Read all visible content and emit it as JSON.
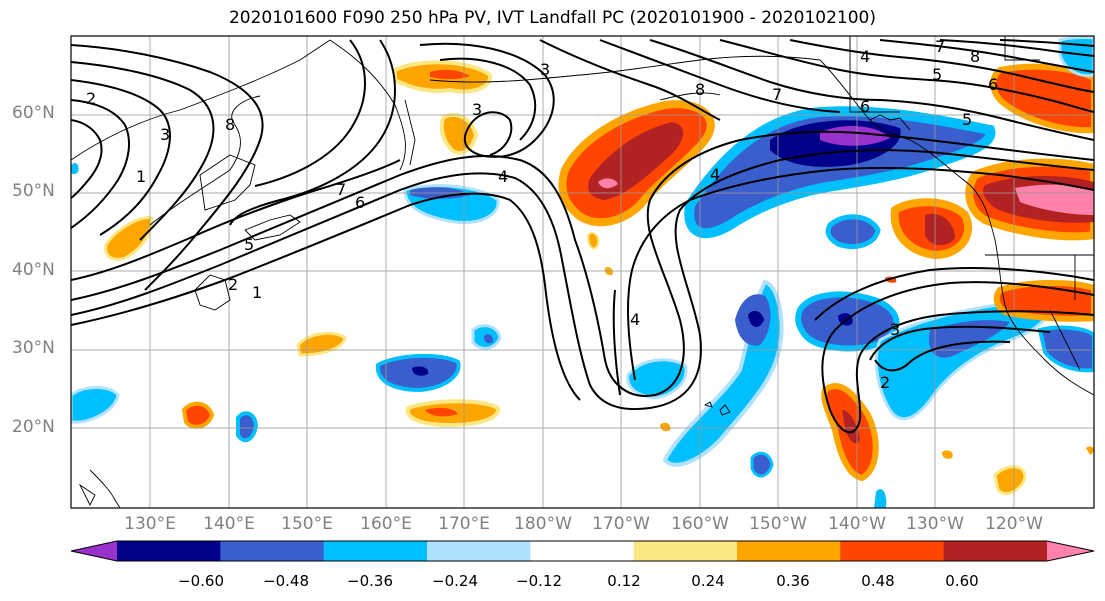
{
  "title": "2020101600 F090 250 hPa PV, IVT Landfall PC (2020101900 - 2020102100)",
  "lat_labels": [
    "60°N",
    "50°N",
    "40°N",
    "30°N",
    "20°N"
  ],
  "lon_labels": [
    "130°E",
    "140°E",
    "150°E",
    "160°E",
    "170°E",
    "180°W",
    "170°W",
    "160°W",
    "150°W",
    "140°W",
    "130°W",
    "120°W"
  ],
  "colorbar": {
    "ticks": [
      "−0.60",
      "−0.48",
      "−0.36",
      "−0.24",
      "−0.12",
      "0.12",
      "0.24",
      "0.36",
      "0.48",
      "0.60"
    ],
    "colors": [
      "#9932cc",
      "#00008b",
      "#3a5fcd",
      "#00bfff",
      "#b0e2ff",
      "#ffffff",
      "#fce883",
      "#ffa500",
      "#ff4500",
      "#b22222",
      "#ff82ab"
    ]
  },
  "contour_labels": [
    "1",
    "2",
    "3",
    "4",
    "5",
    "6",
    "7",
    "8",
    "2",
    "3",
    "4",
    "5",
    "6",
    "7",
    "8",
    "4",
    "4",
    "3",
    "2",
    "1",
    "3",
    "5",
    "6",
    "7",
    "8"
  ]
}
